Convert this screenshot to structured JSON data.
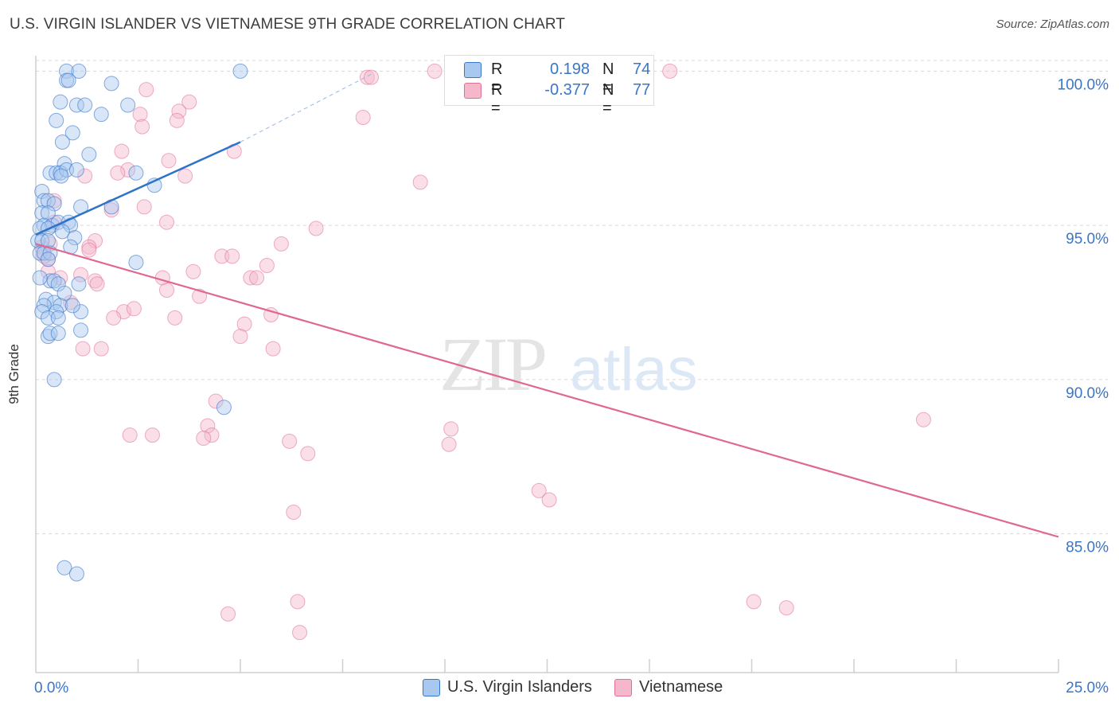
{
  "title": "U.S. VIRGIN ISLANDER VS VIETNAMESE 9TH GRADE CORRELATION CHART",
  "source": "Source: ZipAtlas.com",
  "watermark": {
    "zip": "ZIP",
    "atlas": "atlas"
  },
  "legend": {
    "r_label": "R =",
    "n_label": "N =",
    "rows": [
      {
        "name": "U.S. Virgin Islanders",
        "r": "0.198",
        "n": "74"
      },
      {
        "name": "Vietnamese",
        "r": "-0.377",
        "n": "77"
      }
    ]
  },
  "colors": {
    "series1_fill": "#a9c8ef",
    "series1_stroke": "#3a76c8",
    "series1_line": "#2e73c8",
    "series2_fill": "#f5b8cb",
    "series2_stroke": "#e07096",
    "series2_line": "#e06890",
    "axis_label": "#3a76c8",
    "grid": "#d8d8d8"
  },
  "chart_data": {
    "type": "scatter",
    "title": "U.S. VIRGIN ISLANDER VS VIETNAMESE 9TH GRADE CORRELATION CHART",
    "xlabel": "",
    "ylabel": "9th Grade",
    "xlim": [
      0,
      25
    ],
    "ylim": [
      80.5,
      100.5
    ],
    "x_tick_labels": [
      {
        "value": 0,
        "label": "0.0%"
      },
      {
        "value": 25,
        "label": "25.0%"
      }
    ],
    "y_ticks": [
      {
        "value": 85,
        "label": "85.0%"
      },
      {
        "value": 90,
        "label": "90.0%"
      },
      {
        "value": 95,
        "label": "95.0%"
      },
      {
        "value": 100,
        "label": "100.0%"
      }
    ],
    "x_minor_ticks": [
      2.5,
      5,
      7.5,
      10,
      12.5,
      15,
      17.5,
      20,
      22.5,
      25
    ],
    "series": [
      {
        "name": "U.S. Virgin Islanders",
        "r": 0.198,
        "n": 74,
        "trend": {
          "x0": 0,
          "y0": 94.7,
          "x1": 5,
          "y1": 97.7
        },
        "trend_dashed": {
          "x0": 5,
          "y0": 97.7,
          "x1": 8.2,
          "y1": 99.9
        },
        "points": [
          [
            0.75,
            100.0
          ],
          [
            1.05,
            100.0
          ],
          [
            5.0,
            100.0
          ],
          [
            0.75,
            99.7
          ],
          [
            0.8,
            99.7
          ],
          [
            1.85,
            99.6
          ],
          [
            0.6,
            99.0
          ],
          [
            1.0,
            98.9
          ],
          [
            1.2,
            98.9
          ],
          [
            2.25,
            98.9
          ],
          [
            0.5,
            98.4
          ],
          [
            1.6,
            98.6
          ],
          [
            0.9,
            98.0
          ],
          [
            0.65,
            97.7
          ],
          [
            1.3,
            97.3
          ],
          [
            0.7,
            97.0
          ],
          [
            0.35,
            96.7
          ],
          [
            0.5,
            96.7
          ],
          [
            0.6,
            96.7
          ],
          [
            0.75,
            96.8
          ],
          [
            1.0,
            96.8
          ],
          [
            0.62,
            96.6
          ],
          [
            2.45,
            96.7
          ],
          [
            2.9,
            96.3
          ],
          [
            0.15,
            96.1
          ],
          [
            0.2,
            95.8
          ],
          [
            0.3,
            95.8
          ],
          [
            0.45,
            95.7
          ],
          [
            1.1,
            95.6
          ],
          [
            1.85,
            95.6
          ],
          [
            0.15,
            95.4
          ],
          [
            0.3,
            95.4
          ],
          [
            0.2,
            95.0
          ],
          [
            0.4,
            95.0
          ],
          [
            0.55,
            95.1
          ],
          [
            0.8,
            95.1
          ],
          [
            0.85,
            95.0
          ],
          [
            0.1,
            94.9
          ],
          [
            0.3,
            94.9
          ],
          [
            0.65,
            94.8
          ],
          [
            0.05,
            94.5
          ],
          [
            0.15,
            94.5
          ],
          [
            0.3,
            94.5
          ],
          [
            0.95,
            94.6
          ],
          [
            0.85,
            94.3
          ],
          [
            0.1,
            94.1
          ],
          [
            0.2,
            94.1
          ],
          [
            0.35,
            94.1
          ],
          [
            0.3,
            93.9
          ],
          [
            2.45,
            93.8
          ],
          [
            0.35,
            93.2
          ],
          [
            0.45,
            93.2
          ],
          [
            0.55,
            93.1
          ],
          [
            1.05,
            93.1
          ],
          [
            0.1,
            93.3
          ],
          [
            0.7,
            92.8
          ],
          [
            0.25,
            92.6
          ],
          [
            0.45,
            92.5
          ],
          [
            0.6,
            92.4
          ],
          [
            0.2,
            92.4
          ],
          [
            0.5,
            92.2
          ],
          [
            0.15,
            92.2
          ],
          [
            1.1,
            92.2
          ],
          [
            0.3,
            92.0
          ],
          [
            0.55,
            92.0
          ],
          [
            1.1,
            91.6
          ],
          [
            0.3,
            91.4
          ],
          [
            0.35,
            91.5
          ],
          [
            0.55,
            91.5
          ],
          [
            0.45,
            90.0
          ],
          [
            4.6,
            89.1
          ],
          [
            0.7,
            83.9
          ],
          [
            1.0,
            83.7
          ],
          [
            0.9,
            92.4
          ]
        ]
      },
      {
        "name": "Vietnamese",
        "r": -0.377,
        "n": 77,
        "trend": {
          "x0": 0,
          "y0": 94.4,
          "x1": 25,
          "y1": 84.9
        },
        "points": [
          [
            9.75,
            100.0
          ],
          [
            15.5,
            100.0
          ],
          [
            8.1,
            99.8
          ],
          [
            2.7,
            99.4
          ],
          [
            3.75,
            99.0
          ],
          [
            3.5,
            98.7
          ],
          [
            2.55,
            98.6
          ],
          [
            8.0,
            98.5
          ],
          [
            3.45,
            98.4
          ],
          [
            2.6,
            98.2
          ],
          [
            4.85,
            97.4
          ],
          [
            2.1,
            97.4
          ],
          [
            3.25,
            97.1
          ],
          [
            2.25,
            96.8
          ],
          [
            2.0,
            96.7
          ],
          [
            3.65,
            96.6
          ],
          [
            1.2,
            96.6
          ],
          [
            9.4,
            96.4
          ],
          [
            0.45,
            95.8
          ],
          [
            1.85,
            95.5
          ],
          [
            2.65,
            95.6
          ],
          [
            3.2,
            95.1
          ],
          [
            0.45,
            95.1
          ],
          [
            6.85,
            94.9
          ],
          [
            0.15,
            94.3
          ],
          [
            0.35,
            94.4
          ],
          [
            1.45,
            94.5
          ],
          [
            1.3,
            94.3
          ],
          [
            1.3,
            94.2
          ],
          [
            6.0,
            94.4
          ],
          [
            4.55,
            94.0
          ],
          [
            4.8,
            94.0
          ],
          [
            0.3,
            93.9
          ],
          [
            0.2,
            94.0
          ],
          [
            5.65,
            93.7
          ],
          [
            3.85,
            93.5
          ],
          [
            1.1,
            93.4
          ],
          [
            0.3,
            93.5
          ],
          [
            3.1,
            93.3
          ],
          [
            5.25,
            93.3
          ],
          [
            5.4,
            93.3
          ],
          [
            0.6,
            93.3
          ],
          [
            1.45,
            93.2
          ],
          [
            1.5,
            93.1
          ],
          [
            3.2,
            92.9
          ],
          [
            4.0,
            92.7
          ],
          [
            2.15,
            92.2
          ],
          [
            5.75,
            92.1
          ],
          [
            1.9,
            92.0
          ],
          [
            3.4,
            92.0
          ],
          [
            5.1,
            91.8
          ],
          [
            5.0,
            91.4
          ],
          [
            5.8,
            91.0
          ],
          [
            1.15,
            91.0
          ],
          [
            1.6,
            91.0
          ],
          [
            4.4,
            89.3
          ],
          [
            4.2,
            88.5
          ],
          [
            4.3,
            88.2
          ],
          [
            2.3,
            88.2
          ],
          [
            2.85,
            88.2
          ],
          [
            4.1,
            88.1
          ],
          [
            6.2,
            88.0
          ],
          [
            10.15,
            88.4
          ],
          [
            10.1,
            87.9
          ],
          [
            6.65,
            87.6
          ],
          [
            21.7,
            88.7
          ],
          [
            12.3,
            86.4
          ],
          [
            12.55,
            86.1
          ],
          [
            6.3,
            85.7
          ],
          [
            8.2,
            99.8
          ],
          [
            17.55,
            82.8
          ],
          [
            18.35,
            82.6
          ],
          [
            6.4,
            82.8
          ],
          [
            4.7,
            82.4
          ],
          [
            6.45,
            81.8
          ],
          [
            0.85,
            92.5
          ],
          [
            2.4,
            92.3
          ]
        ]
      }
    ]
  }
}
